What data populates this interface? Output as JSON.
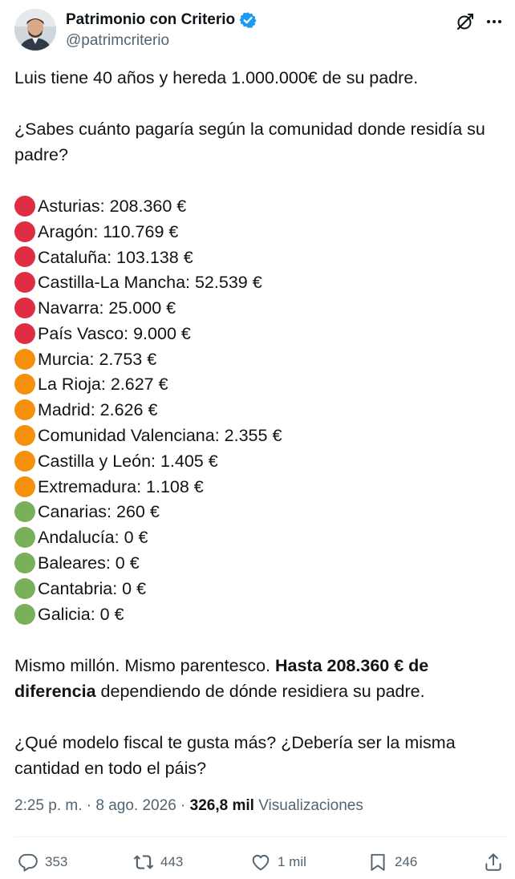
{
  "author": {
    "display_name": "Patrimonio con Criterio",
    "handle": "@patrimcriterio",
    "verified": true
  },
  "tweet": {
    "intro": "Luis tiene 40 años y hereda 1.000.000€ de su padre.",
    "question": "¿Sabes cuánto pagaría según la comunidad donde residía su padre?",
    "items": [
      {
        "color": "red",
        "text": "Asturias: 208.360 €"
      },
      {
        "color": "red",
        "text": "Aragón: 110.769 €"
      },
      {
        "color": "red",
        "text": "Cataluña: 103.138 €"
      },
      {
        "color": "red",
        "text": "Castilla-La Mancha: 52.539 €"
      },
      {
        "color": "red",
        "text": "Navarra: 25.000 €"
      },
      {
        "color": "red",
        "text": "País Vasco: 9.000 €"
      },
      {
        "color": "orange",
        "text": "Murcia: 2.753 €"
      },
      {
        "color": "orange",
        "text": "La Rioja: 2.627 €"
      },
      {
        "color": "orange",
        "text": "Madrid: 2.626 €"
      },
      {
        "color": "orange",
        "text": "Comunidad Valenciana: 2.355 €"
      },
      {
        "color": "orange",
        "text": "Castilla y León: 1.405 €"
      },
      {
        "color": "orange",
        "text": "Extremadura: 1.108 €"
      },
      {
        "color": "green",
        "text": "Canarias: 260 €"
      },
      {
        "color": "green",
        "text": "Andalucía: 0 €"
      },
      {
        "color": "green",
        "text": "Baleares: 0 €"
      },
      {
        "color": "green",
        "text": "Cantabria: 0 €"
      },
      {
        "color": "green",
        "text": "Galicia: 0 €"
      }
    ],
    "conclusion_start": "Mismo millón. Mismo parentesco. ",
    "conclusion_bold": "Hasta 208.360 € de diferencia",
    "conclusion_end": " dependiendo de dónde residiera su padre.",
    "closing": "¿Qué modelo fiscal te gusta más? ¿Debería ser la misma cantidad en todo el páis?"
  },
  "meta": {
    "time": "2:25 p. m.",
    "separator": "·",
    "date": "8 ago. 2026",
    "views_count": "326,8 mil",
    "views_label": "Visualizaciones"
  },
  "actions": {
    "replies": "353",
    "reposts": "443",
    "likes": "1 mil",
    "bookmarks": "246"
  },
  "icons": {
    "verified": "verified-badge-icon",
    "grok": "grok-icon",
    "more": "more-icon",
    "reply": "reply-icon",
    "repost": "repost-icon",
    "like": "heart-icon",
    "bookmark": "bookmark-icon",
    "share": "share-icon"
  },
  "colors": {
    "red": "#dd2e44",
    "orange": "#f4900c",
    "green": "#78b159",
    "verified": "#1d9bf0",
    "secondary_text": "#536471",
    "primary_text": "#0f1419"
  }
}
